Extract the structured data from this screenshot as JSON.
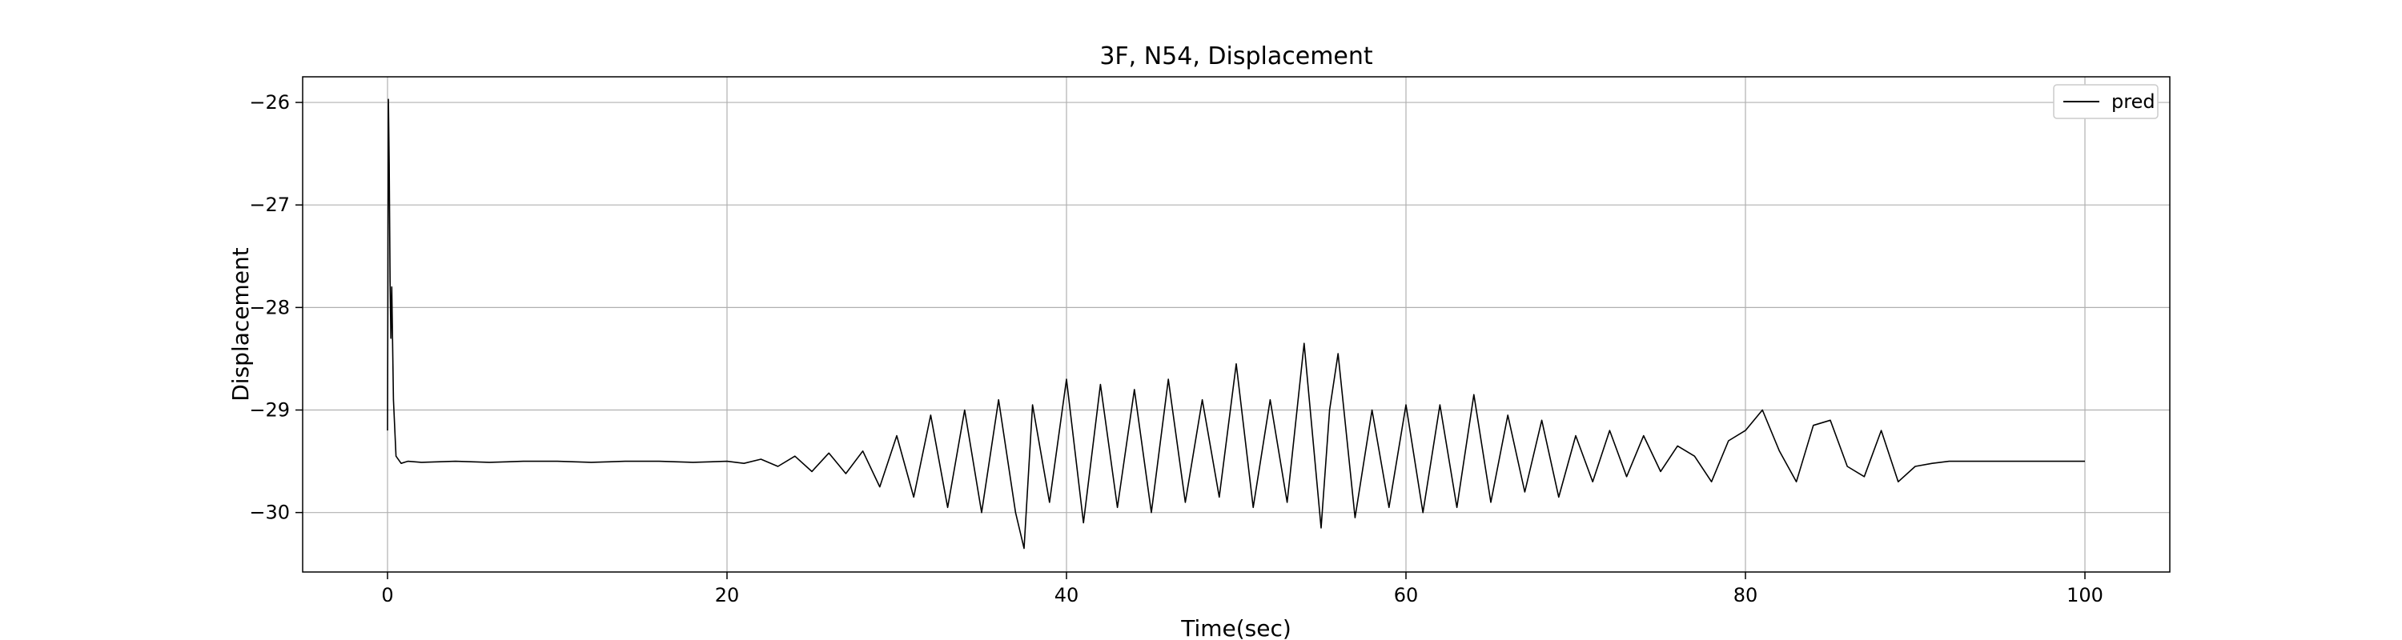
{
  "chart_data": {
    "type": "line",
    "title": "3F, N54, Displacement",
    "xlabel": "Time(sec)",
    "ylabel": "Displacement",
    "xlim": [
      -5,
      105
    ],
    "ylim": [
      -30.58,
      -25.75
    ],
    "xticks": [
      0,
      20,
      40,
      60,
      80,
      100
    ],
    "yticks": [
      -26,
      -27,
      -28,
      -29,
      -30
    ],
    "grid": true,
    "legend": "top-right",
    "line_color": "#000000",
    "series": [
      {
        "name": "pred",
        "x": [
          0.0,
          0.05,
          0.1,
          0.15,
          0.2,
          0.25,
          0.35,
          0.5,
          0.8,
          1.2,
          2,
          4,
          6,
          8,
          10,
          12,
          14,
          16,
          18,
          20,
          21,
          22,
          23,
          24,
          25,
          26,
          27,
          28,
          29,
          30,
          31,
          32,
          33,
          34,
          35,
          36,
          37,
          37.5,
          38,
          39,
          40,
          41,
          42,
          43,
          44,
          45,
          46,
          47,
          48,
          49,
          50,
          51,
          52,
          53,
          54,
          55,
          55.5,
          56,
          57,
          58,
          59,
          60,
          61,
          62,
          63,
          64,
          65,
          66,
          67,
          68,
          69,
          70,
          71,
          72,
          73,
          74,
          75,
          76,
          77,
          78,
          79,
          80,
          81,
          82,
          83,
          84,
          85,
          86,
          87,
          88,
          89,
          90,
          91,
          92,
          95,
          100
        ],
        "y": [
          -29.2,
          -25.97,
          -26.6,
          -27.75,
          -28.3,
          -27.8,
          -28.9,
          -29.45,
          -29.52,
          -29.5,
          -29.51,
          -29.5,
          -29.51,
          -29.5,
          -29.5,
          -29.51,
          -29.5,
          -29.5,
          -29.51,
          -29.5,
          -29.52,
          -29.48,
          -29.55,
          -29.45,
          -29.6,
          -29.42,
          -29.62,
          -29.4,
          -29.75,
          -29.25,
          -29.85,
          -29.05,
          -29.95,
          -29.0,
          -30.0,
          -28.9,
          -30.0,
          -30.35,
          -28.95,
          -29.9,
          -28.7,
          -30.1,
          -28.75,
          -29.95,
          -28.8,
          -30.0,
          -28.7,
          -29.9,
          -28.9,
          -29.85,
          -28.55,
          -29.95,
          -28.9,
          -29.9,
          -28.35,
          -30.15,
          -29.0,
          -28.45,
          -30.05,
          -29.0,
          -29.95,
          -28.95,
          -30.0,
          -28.95,
          -29.95,
          -28.85,
          -29.9,
          -29.05,
          -29.8,
          -29.1,
          -29.85,
          -29.25,
          -29.7,
          -29.2,
          -29.65,
          -29.25,
          -29.6,
          -29.35,
          -29.45,
          -29.7,
          -29.3,
          -29.2,
          -29.0,
          -29.4,
          -29.7,
          -29.15,
          -29.1,
          -29.55,
          -29.65,
          -29.2,
          -29.7,
          -29.55,
          -29.52,
          -29.5,
          -29.5,
          -29.5
        ]
      }
    ]
  }
}
